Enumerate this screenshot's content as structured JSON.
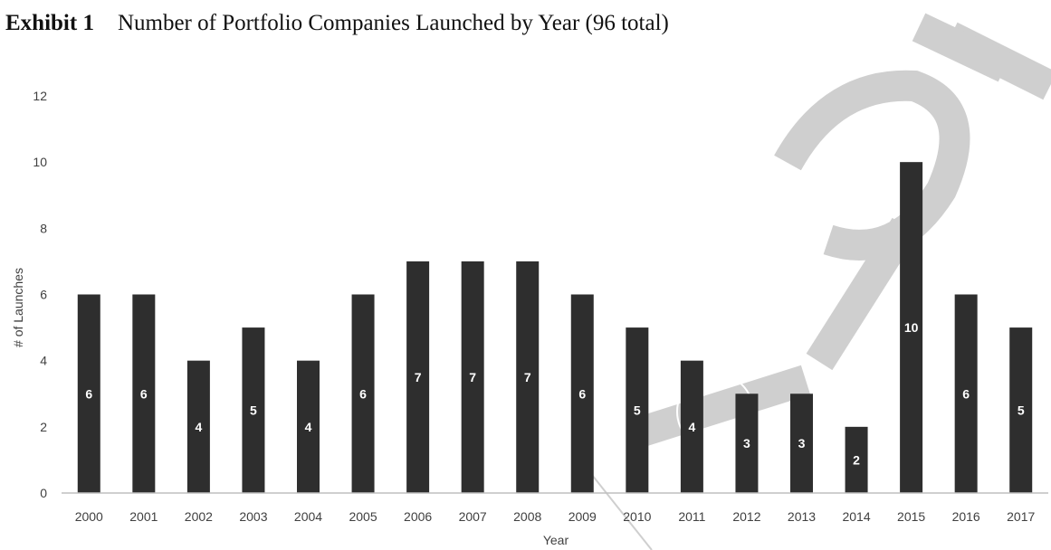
{
  "header": {
    "label": "Exhibit 1",
    "title": "Number of Portfolio Companies Launched by Year (96 total)"
  },
  "colors": {
    "bar": "#2e2e2e",
    "axis": "#bfbfbf",
    "watermark": "#cfcfcf"
  },
  "chart_data": {
    "type": "bar",
    "title": "Number of Portfolio Companies Launched by Year (96 total)",
    "xlabel": "Year",
    "ylabel": "# of Launches",
    "categories": [
      "2000",
      "2001",
      "2002",
      "2003",
      "2004",
      "2005",
      "2006",
      "2007",
      "2008",
      "2009",
      "2010",
      "2011",
      "2012",
      "2013",
      "2014",
      "2015",
      "2016",
      "2017"
    ],
    "values": [
      6,
      6,
      4,
      5,
      4,
      6,
      7,
      7,
      7,
      6,
      5,
      4,
      3,
      3,
      2,
      10,
      6,
      5
    ],
    "ylim": [
      0,
      12
    ],
    "yticks": [
      0,
      2,
      4,
      6,
      8,
      10,
      12
    ],
    "grid": false,
    "legend": "none",
    "data_labels": true
  }
}
